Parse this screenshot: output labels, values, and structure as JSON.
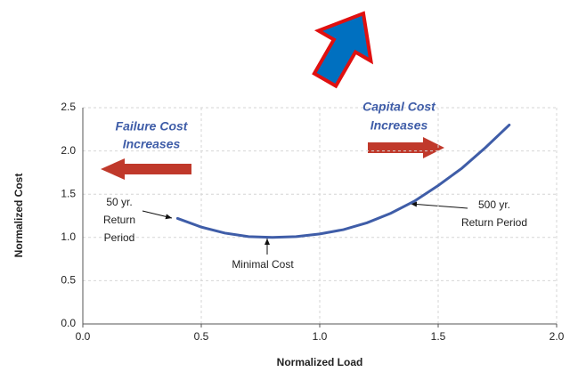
{
  "chart_data": {
    "type": "line",
    "x_label": "Normalized Load",
    "y_label": "Normalized Cost",
    "x": [
      0.4,
      0.5,
      0.6,
      0.7,
      0.8,
      0.9,
      1.0,
      1.1,
      1.2,
      1.3,
      1.4,
      1.5,
      1.6,
      1.7,
      1.8
    ],
    "series": [
      {
        "color": "#3f5da8",
        "values": [
          1.22,
          1.12,
          1.05,
          1.01,
          1.0,
          1.01,
          1.04,
          1.09,
          1.17,
          1.28,
          1.42,
          1.6,
          1.8,
          2.04,
          2.3
        ]
      }
    ],
    "xlim": [
      0,
      2
    ],
    "xticks": [
      {
        "value": 0,
        "label": "0.0"
      },
      0.5,
      {
        "value": 1,
        "label": "1.0"
      },
      1.5,
      {
        "value": 2,
        "label": "2.0"
      }
    ],
    "ylim": [
      0,
      2.5
    ],
    "yticks": [
      {
        "value": 0,
        "label": "0.0"
      },
      0.5,
      {
        "value": 1,
        "label": "1.0"
      },
      1.5,
      {
        "value": 2,
        "label": "2.0"
      },
      2.5
    ],
    "grid": true,
    "annotations": [
      {
        "lines": [
          "Failure Cost",
          "Increases"
        ]
      },
      {
        "lines": [
          "Capital Cost",
          "Increases"
        ]
      },
      {
        "lines": [
          "50 yr.",
          "Return",
          "Period"
        ]
      },
      {
        "lines": [
          "500 yr.",
          "Return Period"
        ]
      },
      {
        "lines": [
          "Minimal Cost"
        ]
      }
    ]
  }
}
